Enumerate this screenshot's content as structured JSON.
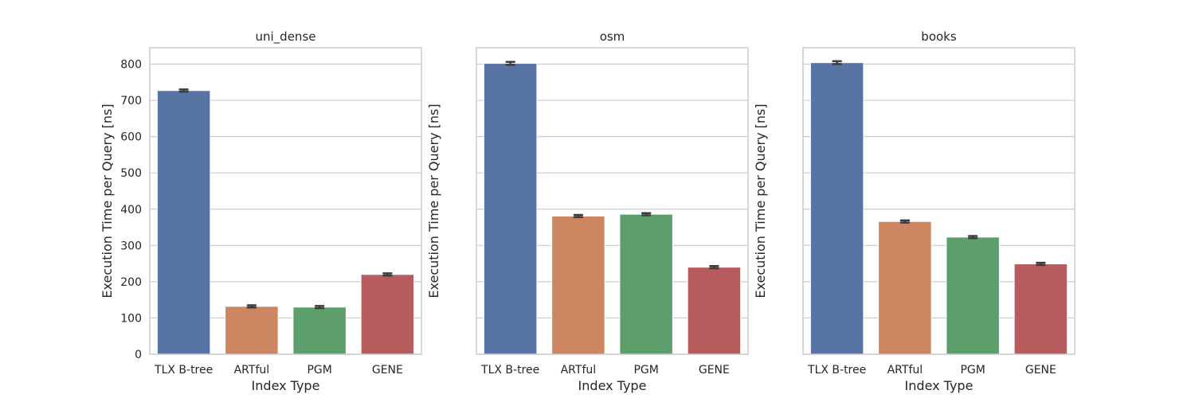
{
  "chart_data": [
    {
      "type": "bar",
      "title": "uni_dense",
      "xlabel": "Index Type",
      "ylabel": "Execution Time per Query [ns]",
      "categories": [
        "TLX B-tree",
        "ARTful",
        "PGM",
        "GENE"
      ],
      "values": [
        727,
        132,
        130,
        220
      ],
      "error": [
        3,
        3,
        3,
        3
      ],
      "ylim": [
        0,
        845
      ],
      "yticks": [
        0,
        100,
        200,
        300,
        400,
        500,
        600,
        700,
        800
      ],
      "show_ytick_labels": true,
      "grid": "horizontal"
    },
    {
      "type": "bar",
      "title": "osm",
      "xlabel": "Index Type",
      "ylabel": "Execution Time per Query [ns]",
      "categories": [
        "TLX B-tree",
        "ARTful",
        "PGM",
        "GENE"
      ],
      "values": [
        802,
        381,
        386,
        240
      ],
      "error": [
        4,
        3,
        3,
        3
      ],
      "ylim": [
        0,
        845
      ],
      "yticks": [
        0,
        100,
        200,
        300,
        400,
        500,
        600,
        700,
        800
      ],
      "show_ytick_labels": false,
      "grid": "horizontal"
    },
    {
      "type": "bar",
      "title": "books",
      "xlabel": "Index Type",
      "ylabel": "Execution Time per Query [ns]",
      "categories": [
        "TLX B-tree",
        "ARTful",
        "PGM",
        "GENE"
      ],
      "values": [
        804,
        366,
        323,
        249
      ],
      "error": [
        4,
        3,
        3,
        3
      ],
      "ylim": [
        0,
        845
      ],
      "yticks": [
        0,
        100,
        200,
        300,
        400,
        500,
        600,
        700,
        800
      ],
      "show_ytick_labels": false,
      "grid": "horizontal"
    }
  ],
  "colors": {
    "bars": [
      "#5874a5",
      "#cc8660",
      "#5d9f6c",
      "#b65b5e"
    ],
    "grid": "#cccccc",
    "frame": "#cccccc",
    "errorbar": "#3c3c3c"
  }
}
